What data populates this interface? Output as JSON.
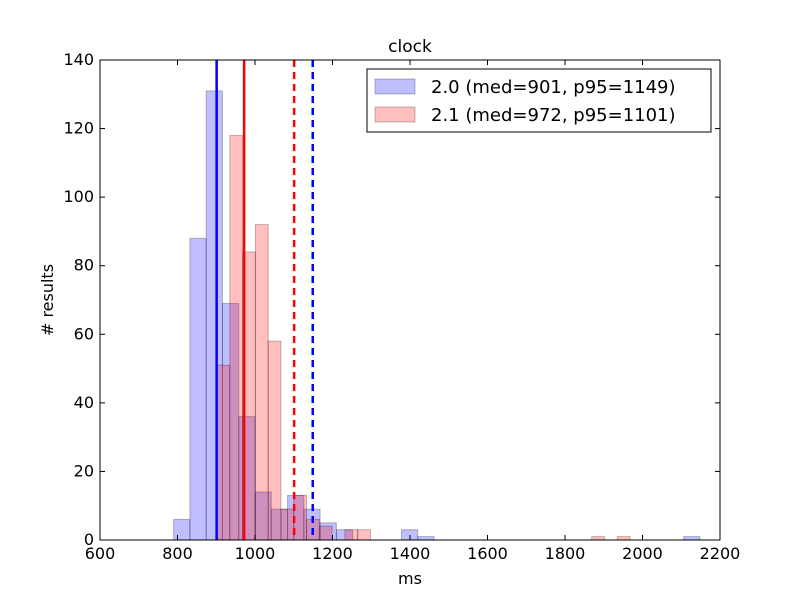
{
  "chart_data": {
    "type": "bar",
    "title": "clock",
    "xlabel": "ms",
    "ylabel": "# results",
    "xlim": [
      600,
      2200
    ],
    "ylim": [
      0,
      140
    ],
    "xticks": [
      600,
      800,
      1000,
      1200,
      1400,
      1600,
      1800,
      2000,
      2200
    ],
    "yticks": [
      0,
      20,
      40,
      60,
      80,
      100,
      120,
      140
    ],
    "legend_position": "top-right",
    "grid": false,
    "series": [
      {
        "name": "2.0 (med=901, p95=1149)",
        "color": "#0000ff",
        "median": 901,
        "p95": 1149,
        "bins": [
          {
            "x0": 790,
            "x1": 832,
            "count": 6
          },
          {
            "x0": 832,
            "x1": 874,
            "count": 88
          },
          {
            "x0": 874,
            "x1": 916,
            "count": 131
          },
          {
            "x0": 916,
            "x1": 958,
            "count": 69
          },
          {
            "x0": 958,
            "x1": 1000,
            "count": 36
          },
          {
            "x0": 1000,
            "x1": 1042,
            "count": 14
          },
          {
            "x0": 1042,
            "x1": 1084,
            "count": 9
          },
          {
            "x0": 1084,
            "x1": 1126,
            "count": 13
          },
          {
            "x0": 1126,
            "x1": 1168,
            "count": 9
          },
          {
            "x0": 1168,
            "x1": 1210,
            "count": 5
          },
          {
            "x0": 1210,
            "x1": 1252,
            "count": 3
          },
          {
            "x0": 1252,
            "x1": 1294,
            "count": 0
          },
          {
            "x0": 1294,
            "x1": 1336,
            "count": 0
          },
          {
            "x0": 1336,
            "x1": 1378,
            "count": 0
          },
          {
            "x0": 1378,
            "x1": 1420,
            "count": 3
          },
          {
            "x0": 1420,
            "x1": 1462,
            "count": 1
          },
          {
            "x0": 2106,
            "x1": 2148,
            "count": 1
          }
        ]
      },
      {
        "name": "2.1 (med=972, p95=1101)",
        "color": "#ff0000",
        "median": 972,
        "p95": 1101,
        "bins": [
          {
            "x0": 902,
            "x1": 935,
            "count": 51
          },
          {
            "x0": 935,
            "x1": 968,
            "count": 118
          },
          {
            "x0": 968,
            "x1": 1001,
            "count": 84
          },
          {
            "x0": 1001,
            "x1": 1034,
            "count": 92
          },
          {
            "x0": 1034,
            "x1": 1067,
            "count": 58
          },
          {
            "x0": 1067,
            "x1": 1100,
            "count": 9
          },
          {
            "x0": 1100,
            "x1": 1133,
            "count": 13
          },
          {
            "x0": 1133,
            "x1": 1166,
            "count": 6
          },
          {
            "x0": 1166,
            "x1": 1199,
            "count": 4
          },
          {
            "x0": 1199,
            "x1": 1232,
            "count": 0
          },
          {
            "x0": 1232,
            "x1": 1265,
            "count": 3
          },
          {
            "x0": 1265,
            "x1": 1298,
            "count": 3
          },
          {
            "x0": 1869,
            "x1": 1902,
            "count": 1
          },
          {
            "x0": 1935,
            "x1": 1968,
            "count": 1
          }
        ]
      }
    ]
  }
}
